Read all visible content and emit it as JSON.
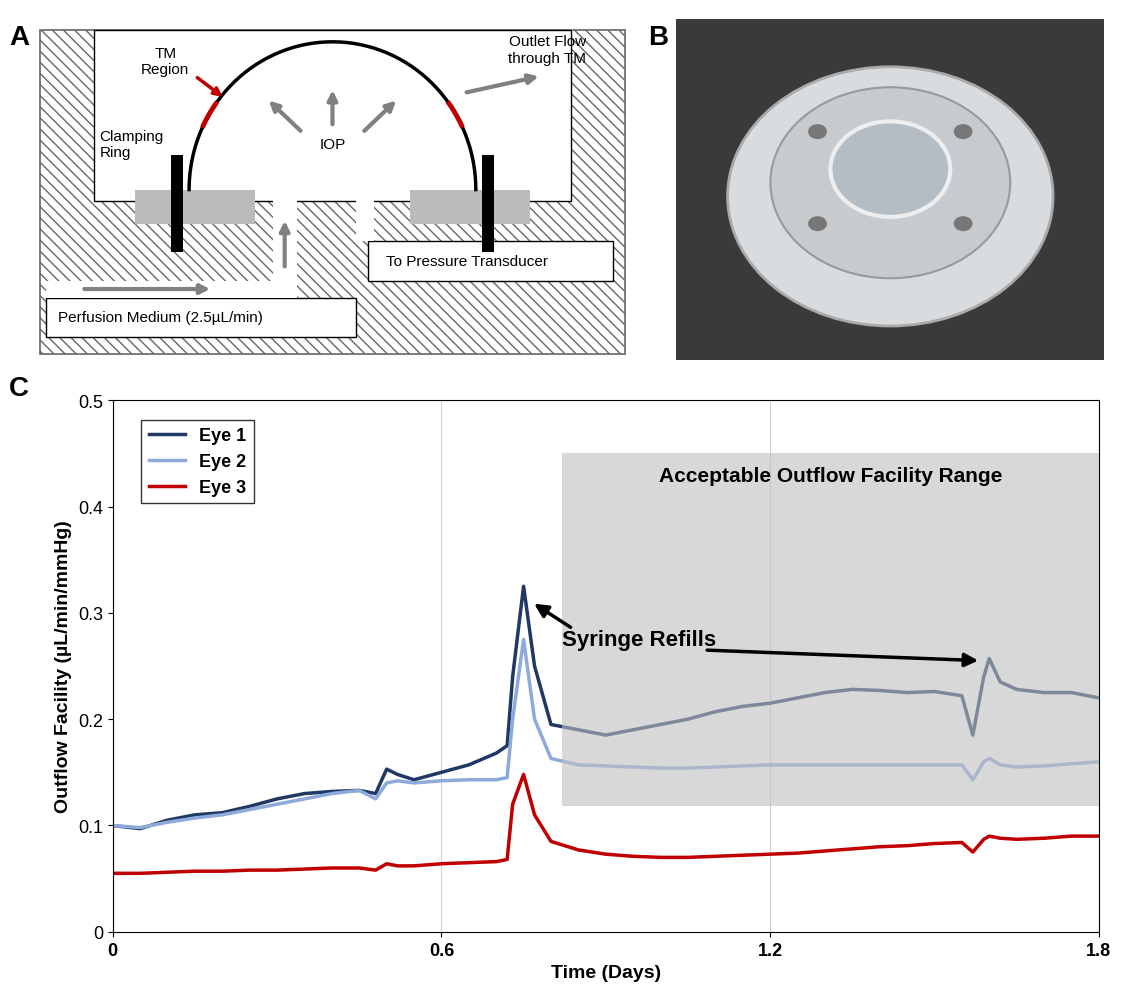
{
  "panel_labels": [
    "A",
    "B",
    "C"
  ],
  "diagram": {
    "labels": {
      "tm_region": "TM\nRegion",
      "iop": "IOP",
      "outlet": "Outlet Flow\nthrough TM",
      "clamping_ring": "Clamping\nRing",
      "pressure": "To Pressure Transducer",
      "perfusion": "Perfusion Medium (2.5µL/min)"
    }
  },
  "chart_data": {
    "type": "line",
    "x_label": "Time (Days)",
    "y_label": "Outflow Facility (µL/min/mmHg)",
    "x": [
      0,
      0.05,
      0.1,
      0.15,
      0.2,
      0.25,
      0.3,
      0.35,
      0.4,
      0.45,
      0.48,
      0.5,
      0.52,
      0.55,
      0.6,
      0.65,
      0.7,
      0.72,
      0.73,
      0.75,
      0.77,
      0.8,
      0.85,
      0.9,
      0.95,
      1.0,
      1.05,
      1.1,
      1.15,
      1.2,
      1.25,
      1.3,
      1.35,
      1.4,
      1.45,
      1.5,
      1.55,
      1.57,
      1.59,
      1.6,
      1.62,
      1.65,
      1.7,
      1.75,
      1.8
    ],
    "series": [
      {
        "name": "Eye 1",
        "color": "#1f3864",
        "values": [
          0.1,
          0.097,
          0.105,
          0.11,
          0.112,
          0.118,
          0.125,
          0.13,
          0.132,
          0.133,
          0.13,
          0.153,
          0.148,
          0.143,
          0.15,
          0.157,
          0.168,
          0.175,
          0.24,
          0.325,
          0.25,
          0.195,
          0.19,
          0.185,
          0.19,
          0.195,
          0.2,
          0.207,
          0.212,
          0.215,
          0.22,
          0.225,
          0.228,
          0.227,
          0.225,
          0.226,
          0.222,
          0.185,
          0.24,
          0.257,
          0.235,
          0.228,
          0.225,
          0.225,
          0.22
        ]
      },
      {
        "name": "Eye 2",
        "color": "#8eaadb",
        "values": [
          0.1,
          0.098,
          0.103,
          0.107,
          0.11,
          0.115,
          0.12,
          0.125,
          0.13,
          0.133,
          0.125,
          0.14,
          0.142,
          0.14,
          0.142,
          0.143,
          0.143,
          0.145,
          0.2,
          0.275,
          0.2,
          0.163,
          0.157,
          0.156,
          0.155,
          0.154,
          0.154,
          0.155,
          0.156,
          0.157,
          0.157,
          0.157,
          0.157,
          0.157,
          0.157,
          0.157,
          0.157,
          0.143,
          0.16,
          0.163,
          0.157,
          0.155,
          0.156,
          0.158,
          0.16
        ]
      },
      {
        "name": "Eye 3",
        "color": "#c00000",
        "values": [
          0.055,
          0.055,
          0.056,
          0.057,
          0.057,
          0.058,
          0.058,
          0.059,
          0.06,
          0.06,
          0.058,
          0.064,
          0.062,
          0.062,
          0.064,
          0.065,
          0.066,
          0.068,
          0.12,
          0.148,
          0.11,
          0.085,
          0.077,
          0.073,
          0.071,
          0.07,
          0.07,
          0.071,
          0.072,
          0.073,
          0.074,
          0.076,
          0.078,
          0.08,
          0.081,
          0.083,
          0.084,
          0.075,
          0.087,
          0.09,
          0.088,
          0.087,
          0.088,
          0.09,
          0.09
        ]
      }
    ],
    "xlim": [
      0,
      1.8
    ],
    "xticks": [
      0,
      0.6,
      1.2,
      1.8
    ],
    "ylim": [
      0,
      0.5
    ],
    "yticks": [
      0,
      0.1,
      0.2,
      0.3,
      0.4,
      0.5
    ],
    "grid": "x",
    "legend": "upper left",
    "shaded_region": {
      "label": "Acceptable Outflow Facility Range",
      "x": [
        0.82,
        1.8
      ],
      "y": [
        0.118,
        0.45
      ],
      "color": "#bfbfbf"
    },
    "annotation": {
      "text": "Syringe Refills",
      "points": [
        [
          0.765,
          0.31
        ],
        [
          1.585,
          0.255
        ]
      ]
    }
  }
}
